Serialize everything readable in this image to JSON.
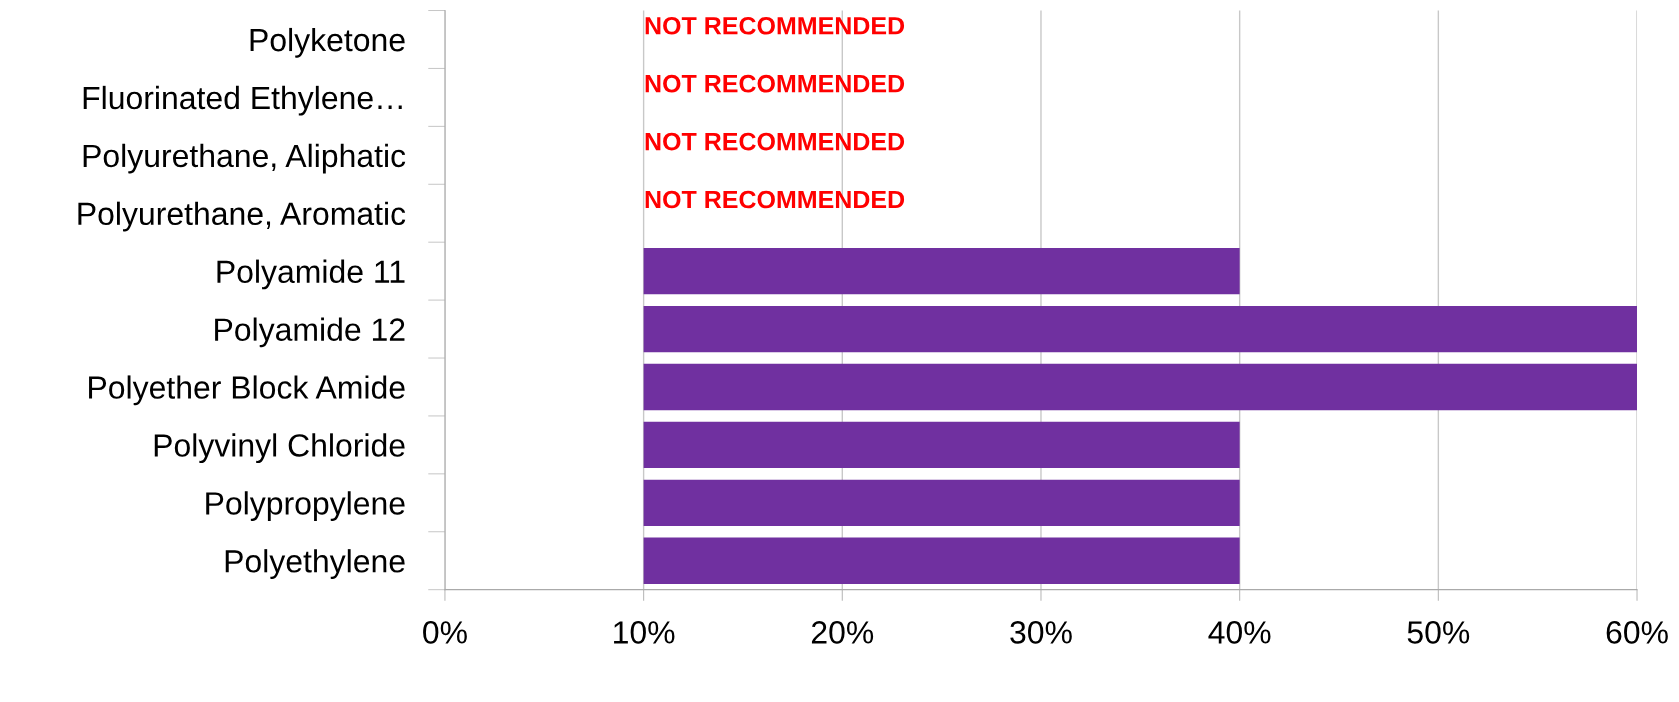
{
  "chart_data": {
    "type": "bar",
    "orientation": "horizontal",
    "categories": [
      "Polyketone",
      "Fluorinated Ethylene…",
      "Polyurethane, Aliphatic",
      "Polyurethane, Aromatic",
      "Polyamide 11",
      "Polyamide 12",
      "Polyether Block Amide",
      "Polyvinyl Chloride",
      "Polypropylene",
      "Polyethylene"
    ],
    "values": [
      null,
      null,
      null,
      null,
      30,
      50,
      50,
      30,
      30,
      30
    ],
    "base": [
      null,
      null,
      null,
      null,
      10,
      10,
      10,
      10,
      10,
      10
    ],
    "color": "#7030a0",
    "xlim": [
      0,
      60
    ],
    "xticks": [
      {
        "value": 0,
        "label": "0%"
      },
      {
        "value": 10,
        "label": "10%"
      },
      {
        "value": 20,
        "label": "20%"
      },
      {
        "value": 30,
        "label": "30%"
      },
      {
        "value": 40,
        "label": "40%"
      },
      {
        "value": 50,
        "label": "50%"
      },
      {
        "value": 60,
        "label": "60%"
      }
    ],
    "grid": "x",
    "annotations": [
      "NOT RECOMMENDED",
      "NOT RECOMMENDED",
      "NOT RECOMMENDED",
      "NOT RECOMMENDED"
    ]
  }
}
